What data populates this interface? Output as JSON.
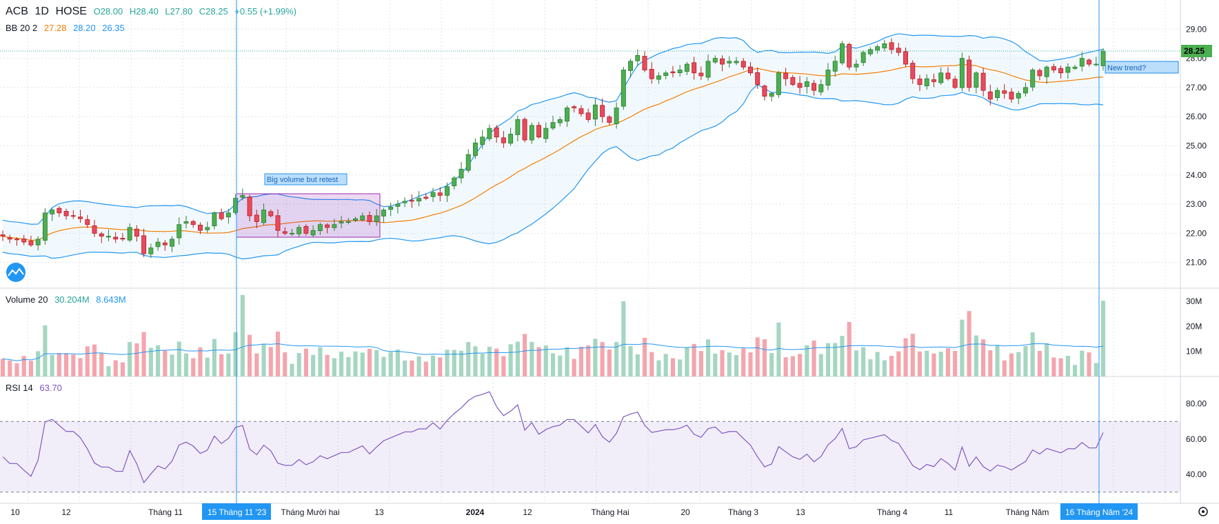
{
  "colors": {
    "up": "#26a69a",
    "up_fill": "#4caf50",
    "down": "#ef5350",
    "down_fill": "#e84a5f",
    "bb_basis": "#f57c00",
    "bb_band": "#2196f3",
    "rsi": "#7e57c2",
    "vol_up": "#a5d6c1",
    "vol_down": "#f4a5ad",
    "accent": "#2196f3"
  },
  "header": {
    "symbol": "ACB",
    "interval": "1D",
    "exchange": "HOSE",
    "open": "O28.00",
    "high": "H28.40",
    "low": "L27.80",
    "close": "C28.25",
    "change": "+0.55 (+1.99%)"
  },
  "bb_legend": {
    "name": "BB 20 2",
    "basis": "27.28",
    "upper": "28.20",
    "lower": "26.35"
  },
  "volume_legend": {
    "name": "Volume 20",
    "volume": "30.204M",
    "ma": "8.643M"
  },
  "rsi_legend": {
    "name": "RSI 14",
    "value": "63.70"
  },
  "price_axis": {
    "ticks": [
      "29.00",
      "28.00",
      "27.00",
      "26.00",
      "25.00",
      "24.00",
      "23.00",
      "22.00",
      "21.00"
    ],
    "last_price": "28.25"
  },
  "volume_axis": {
    "ticks": [
      "30M",
      "20M",
      "10M"
    ]
  },
  "rsi_axis": {
    "ticks": [
      "80.00",
      "60.00",
      "40.00"
    ]
  },
  "time_axis": {
    "labels": [
      "10",
      "12",
      "Tháng 11",
      "Tháng Mười hai",
      "13",
      "2024",
      "12",
      "Tháng Hai",
      "20",
      "Tháng 3",
      "13",
      "Tháng 4",
      "11",
      "Tháng Năm"
    ],
    "crosshair_left": "15 Tháng 11 '23",
    "crosshair_right": "16 Tháng Năm '24"
  },
  "annotations": {
    "box_label": "Big volume but retest",
    "trend_label": "New trend?"
  },
  "chart_data": {
    "type": "candlestick",
    "symbol": "ACB",
    "interval": "1D",
    "ylim": [
      20.6,
      29.7
    ],
    "closes": [
      21.9,
      21.8,
      21.8,
      21.7,
      21.6,
      21.8,
      22.7,
      22.8,
      22.7,
      22.6,
      22.6,
      22.5,
      22.3,
      22.0,
      21.9,
      21.9,
      21.8,
      21.8,
      22.2,
      21.9,
      21.3,
      21.5,
      21.7,
      21.6,
      21.8,
      22.3,
      22.4,
      22.3,
      22.1,
      22.2,
      22.7,
      22.5,
      22.7,
      23.2,
      23.3,
      22.6,
      22.4,
      22.8,
      22.6,
      22.1,
      22.0,
      22.0,
      22.2,
      22.0,
      22.1,
      22.3,
      22.2,
      22.3,
      22.4,
      22.4,
      22.5,
      22.6,
      22.4,
      22.6,
      22.8,
      22.9,
      23.0,
      23.1,
      23.1,
      23.2,
      23.2,
      23.4,
      23.3,
      23.6,
      23.9,
      24.2,
      24.7,
      25.1,
      25.3,
      25.6,
      25.3,
      25.1,
      25.4,
      25.9,
      25.2,
      25.7,
      25.3,
      25.6,
      25.8,
      25.9,
      26.3,
      26.3,
      26.1,
      25.9,
      26.4,
      26.0,
      25.8,
      26.3,
      27.6,
      27.9,
      28.1,
      27.6,
      27.3,
      27.4,
      27.5,
      27.5,
      27.6,
      27.8,
      27.5,
      27.4,
      27.9,
      28.0,
      27.8,
      27.9,
      27.9,
      27.7,
      27.5,
      27.1,
      26.7,
      26.8,
      27.5,
      27.3,
      27.1,
      27.0,
      27.2,
      26.9,
      27.1,
      27.6,
      27.9,
      28.5,
      27.7,
      27.8,
      28.2,
      28.3,
      28.4,
      28.5,
      28.3,
      28.2,
      27.8,
      27.3,
      27.1,
      27.3,
      27.2,
      27.5,
      27.3,
      27.0,
      28.0,
      27.0,
      27.5,
      26.9,
      26.6,
      26.9,
      26.8,
      26.6,
      26.8,
      27.0,
      27.6,
      27.4,
      27.7,
      27.6,
      27.5,
      27.7,
      27.7,
      28.0,
      27.8,
      27.8,
      28.25
    ],
    "volume_range": [
      0,
      33000000
    ],
    "rsi_range": [
      26,
      90
    ],
    "rsi_overbought": 70,
    "rsi_oversold": 30
  }
}
